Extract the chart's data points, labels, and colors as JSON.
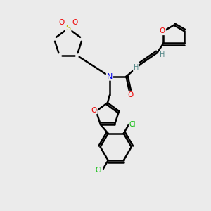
{
  "background_color": "#ebebeb",
  "bond_color": "#000000",
  "bond_width": 1.8,
  "atom_colors": {
    "N": "#0000ee",
    "O": "#ee0000",
    "S": "#bbbb00",
    "Cl": "#00bb00",
    "C": "#000000",
    "H": "#558888"
  },
  "figsize": [
    3.0,
    3.0
  ],
  "dpi": 100
}
